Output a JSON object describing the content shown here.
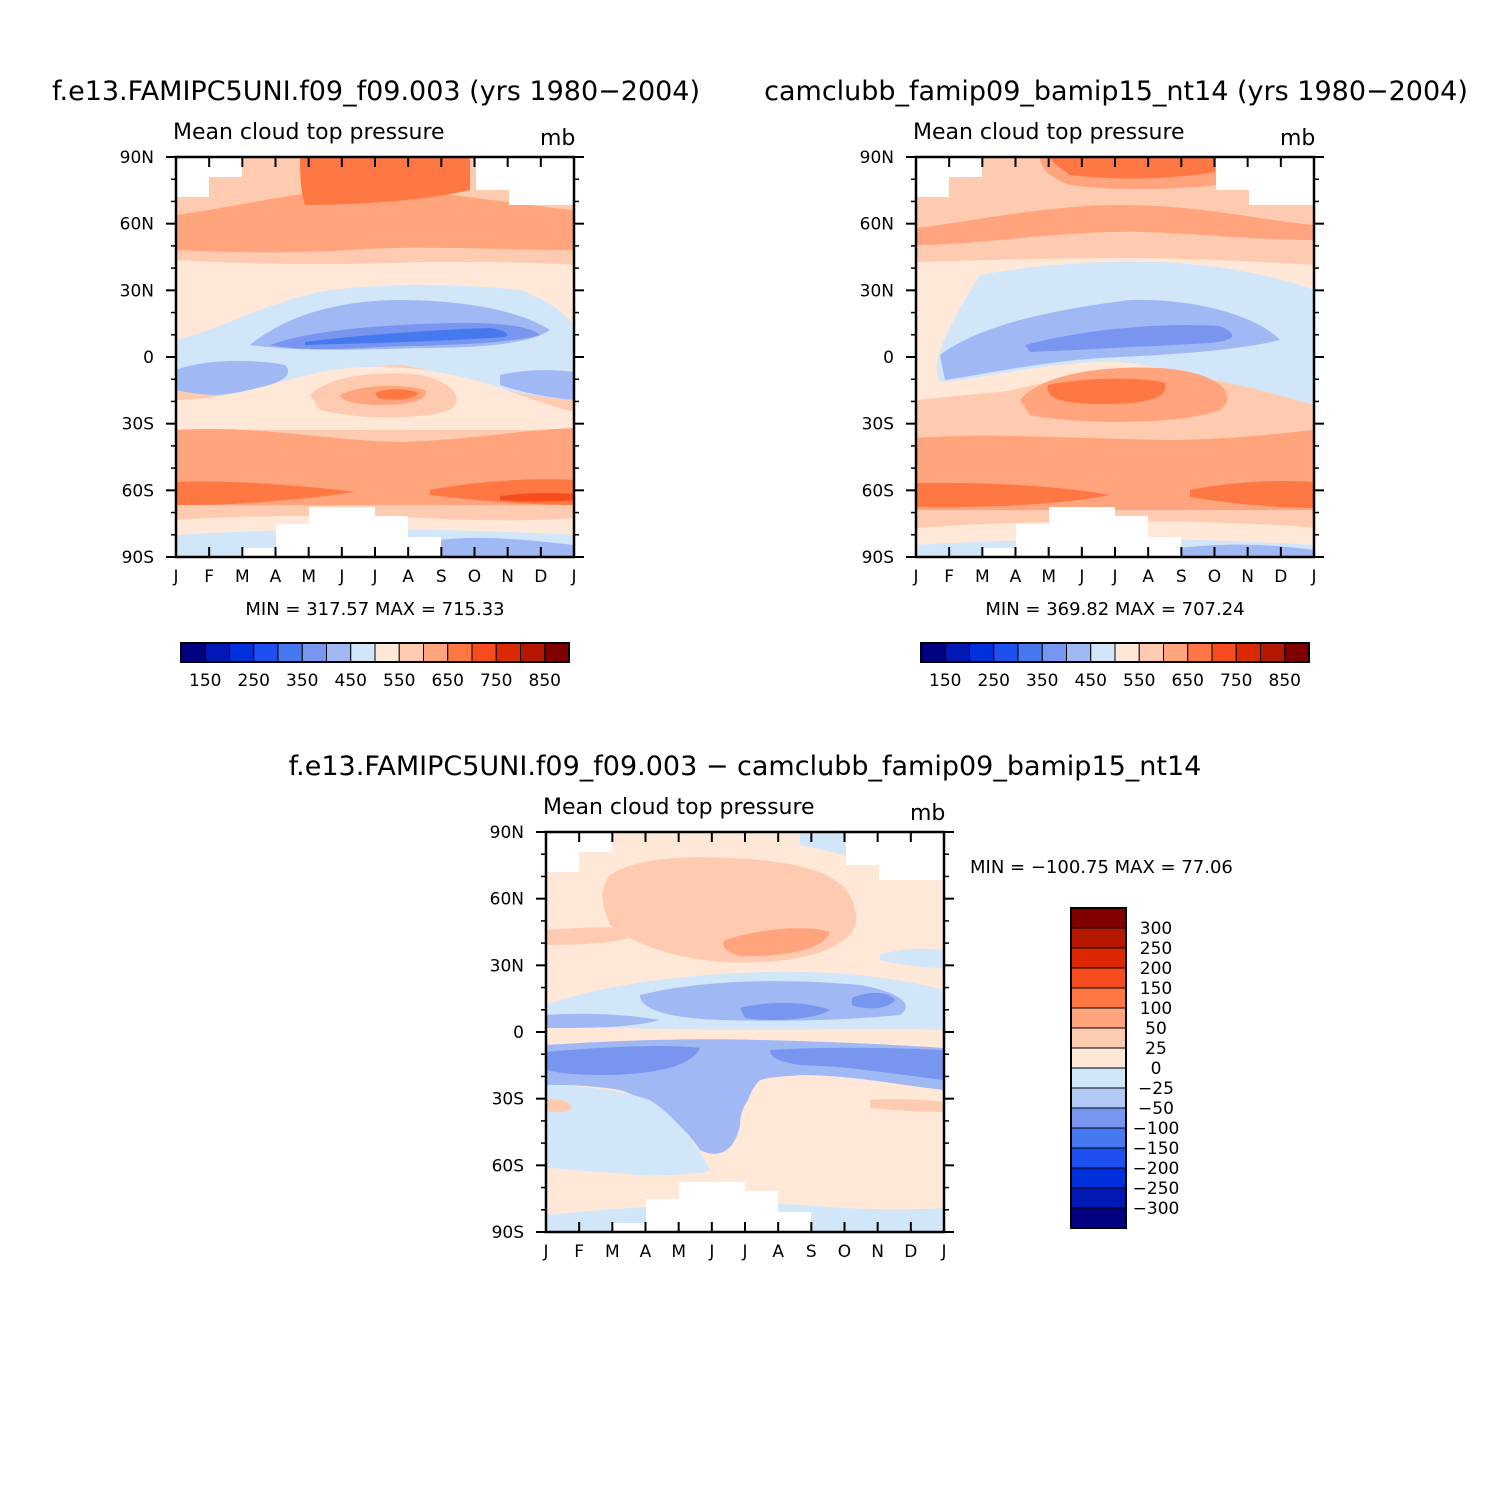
{
  "figure": {
    "panels": [
      {
        "id": "left",
        "title": "f.e13.FAMIPC5UNI.f09_f09.003 (yrs 1980−2004)",
        "subtitle": "Mean cloud top pressure",
        "units": "mb",
        "minmax": "MIN = 317.57 MAX = 715.33"
      },
      {
        "id": "right",
        "title": "camclubb_famip09_bamip15_nt14 (yrs 1980−2004)",
        "subtitle": "Mean cloud top pressure",
        "units": "mb",
        "minmax": "MIN = 369.82 MAX = 707.24"
      },
      {
        "id": "diff",
        "title": "f.e13.FAMIPC5UNI.f09_f09.003 − camclubb_famip09_bamip15_nt14",
        "subtitle": "Mean cloud top pressure",
        "units": "mb",
        "minmax": "MIN = −100.75 MAX =   77.06"
      }
    ]
  },
  "chart_data": [
    {
      "type": "heatmap",
      "title": "f.e13.FAMIPC5UNI.f09_f09.003 (yrs 1980−2004)",
      "subtitle": "Mean cloud top pressure",
      "units": "mb",
      "x_ticks": [
        "J",
        "F",
        "M",
        "A",
        "M",
        "J",
        "J",
        "A",
        "S",
        "O",
        "N",
        "D",
        "J"
      ],
      "y_ticks": [
        "90N",
        "60N",
        "30N",
        "0",
        "30S",
        "60S",
        "90S"
      ],
      "ylim": [
        -90,
        90
      ],
      "colorbar_levels": [
        150,
        200,
        250,
        300,
        350,
        400,
        450,
        500,
        550,
        600,
        650,
        700,
        750,
        800,
        850
      ],
      "colorbar_labels": [
        "150",
        "250",
        "350",
        "450",
        "550",
        "650",
        "750",
        "850"
      ],
      "colors": [
        "#000080",
        "#0018b4",
        "#0030dc",
        "#1e50f0",
        "#4678f0",
        "#7896f0",
        "#a0b9f5",
        "#d2e6fa",
        "#ffe8d8",
        "#ffcbb0",
        "#ffa47c",
        "#ff7844",
        "#f64c1e",
        "#dc2800",
        "#b41800",
        "#800000"
      ],
      "min": 317.57,
      "max": 715.33,
      "minmax_text": "MIN = 317.57 MAX = 715.33"
    },
    {
      "type": "heatmap",
      "title": "camclubb_famip09_bamip15_nt14 (yrs 1980−2004)",
      "subtitle": "Mean cloud top pressure",
      "units": "mb",
      "x_ticks": [
        "J",
        "F",
        "M",
        "A",
        "M",
        "J",
        "J",
        "A",
        "S",
        "O",
        "N",
        "D",
        "J"
      ],
      "y_ticks": [
        "90N",
        "60N",
        "30N",
        "0",
        "30S",
        "60S",
        "90S"
      ],
      "ylim": [
        -90,
        90
      ],
      "colorbar_levels": [
        150,
        200,
        250,
        300,
        350,
        400,
        450,
        500,
        550,
        600,
        650,
        700,
        750,
        800,
        850
      ],
      "colorbar_labels": [
        "150",
        "250",
        "350",
        "450",
        "550",
        "650",
        "750",
        "850"
      ],
      "colors": [
        "#000080",
        "#0018b4",
        "#0030dc",
        "#1e50f0",
        "#4678f0",
        "#7896f0",
        "#a0b9f5",
        "#d2e6fa",
        "#ffe8d8",
        "#ffcbb0",
        "#ffa47c",
        "#ff7844",
        "#f64c1e",
        "#dc2800",
        "#b41800",
        "#800000"
      ],
      "min": 369.82,
      "max": 707.24,
      "minmax_text": "MIN = 369.82 MAX = 707.24"
    },
    {
      "type": "heatmap",
      "title": "f.e13.FAMIPC5UNI.f09_f09.003 − camclubb_famip09_bamip15_nt14",
      "subtitle": "Mean cloud top pressure",
      "units": "mb",
      "x_ticks": [
        "J",
        "F",
        "M",
        "A",
        "M",
        "J",
        "J",
        "A",
        "S",
        "O",
        "N",
        "D",
        "J"
      ],
      "y_ticks": [
        "90N",
        "60N",
        "30N",
        "0",
        "30S",
        "60S",
        "90S"
      ],
      "ylim": [
        -90,
        90
      ],
      "colorbar_levels": [
        -300,
        -250,
        -200,
        -150,
        -100,
        -50,
        -25,
        0,
        25,
        50,
        100,
        150,
        200,
        250,
        300
      ],
      "colorbar_labels": [
        "300",
        "250",
        "200",
        "150",
        "100",
        "50",
        "25",
        "0",
        "−25",
        "−50",
        "−100",
        "−150",
        "−200",
        "−250",
        "−300"
      ],
      "colors": [
        "#000080",
        "#0018b4",
        "#0030dc",
        "#1e50f0",
        "#4678f0",
        "#7896f0",
        "#b4c8f5",
        "#d2e6fa",
        "#ffe8d8",
        "#ffcbb0",
        "#ffa47c",
        "#ff7844",
        "#f64c1e",
        "#dc2800",
        "#b41800",
        "#800000"
      ],
      "min": -100.75,
      "max": 77.06,
      "minmax_text": "MIN = −100.75 MAX =   77.06"
    }
  ]
}
